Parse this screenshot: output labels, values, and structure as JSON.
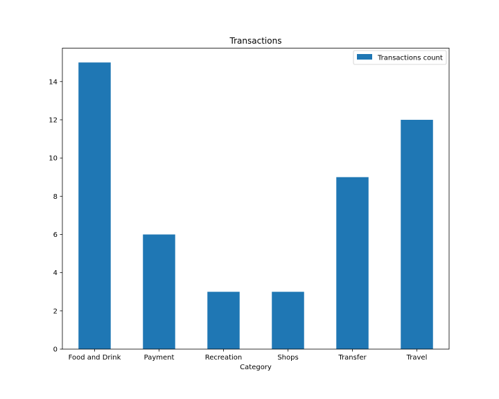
{
  "chart_data": {
    "type": "bar",
    "title": "Transactions",
    "xlabel": "Category",
    "ylabel": "",
    "categories": [
      "Food and Drink",
      "Payment",
      "Recreation",
      "Shops",
      "Transfer",
      "Travel"
    ],
    "series": [
      {
        "name": "Transactions count",
        "values": [
          15,
          6,
          3,
          3,
          9,
          12
        ]
      }
    ],
    "yticks": [
      0,
      2,
      4,
      6,
      8,
      10,
      12,
      14
    ],
    "ylim": [
      0,
      15.75
    ],
    "grid": false,
    "legend_position": "top-right",
    "colors": {
      "bar": "#1f77b4",
      "axis": "#000000"
    }
  }
}
